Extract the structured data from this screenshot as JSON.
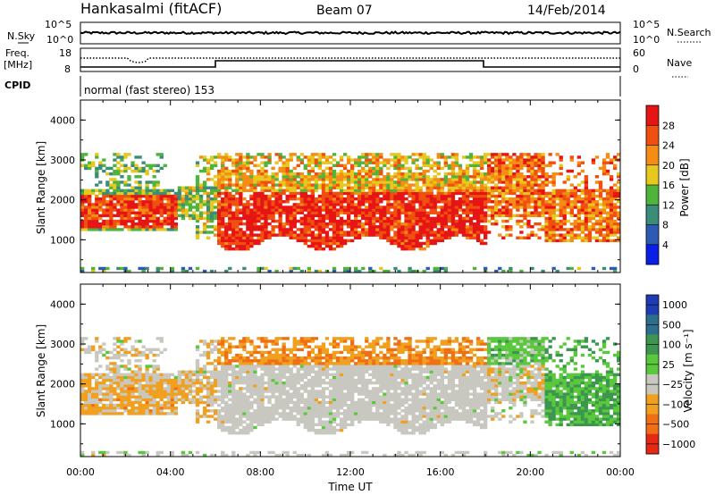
{
  "header": {
    "station": "Hankasalmi (fitACF)",
    "beam": "Beam 07",
    "date": "14/Feb/2014"
  },
  "top_panels": {
    "nsky_label": "N.Sky",
    "nsky_ticks": [
      "10^5",
      "10^0"
    ],
    "nsearch_label": "N.Search",
    "nsearch_ticks": [
      "10^5",
      "10^0"
    ],
    "freq_label_1": "Freq.",
    "freq_label_2": "[MHz]",
    "freq_ticks": [
      "18",
      "8"
    ],
    "nave_label": "Nave",
    "nave_ticks": [
      "60",
      "0"
    ],
    "cpid_label": "CPID",
    "cpid_text": "normal (fast stereo) 153"
  },
  "chart_data": [
    {
      "type": "heatmap",
      "title": "",
      "xlabel": "Time UT",
      "ylabel": "Slant Range [km]",
      "xticks": [
        "00:00",
        "04:00",
        "08:00",
        "12:00",
        "16:00",
        "20:00",
        "00:00"
      ],
      "yticks": [
        "1000",
        "2000",
        "3000",
        "4000"
      ],
      "ylim": [
        180,
        4500
      ],
      "colorbar": {
        "label": "Power [dB]",
        "ticks": [
          "4",
          "8",
          "12",
          "16",
          "20",
          "24",
          "28"
        ],
        "colors": [
          "#0a1ee6",
          "#2c5ab4",
          "#3c8c7a",
          "#4fb43c",
          "#e6c81e",
          "#f58c14",
          "#f0500f",
          "#e61414"
        ]
      }
    },
    {
      "type": "heatmap",
      "title": "",
      "xlabel": "Time UT",
      "ylabel": "Slant Range [km]",
      "xticks": [
        "00:00",
        "04:00",
        "08:00",
        "12:00",
        "16:00",
        "20:00",
        "00:00"
      ],
      "yticks": [
        "1000",
        "2000",
        "3000",
        "4000"
      ],
      "ylim": [
        180,
        4500
      ],
      "colorbar": {
        "label": "Velocity [m s⁻¹]",
        "ticks": [
          "1000",
          "500",
          "100",
          "25",
          "−25",
          "−100",
          "−500",
          "−1000"
        ],
        "colors": [
          "#1e3cb4",
          "#2c6e8c",
          "#3c9650",
          "#5ac83c",
          "#c8c8c0",
          "#f0a01e",
          "#f06e14",
          "#e62814"
        ]
      }
    }
  ],
  "time_axis_label": "Time UT"
}
